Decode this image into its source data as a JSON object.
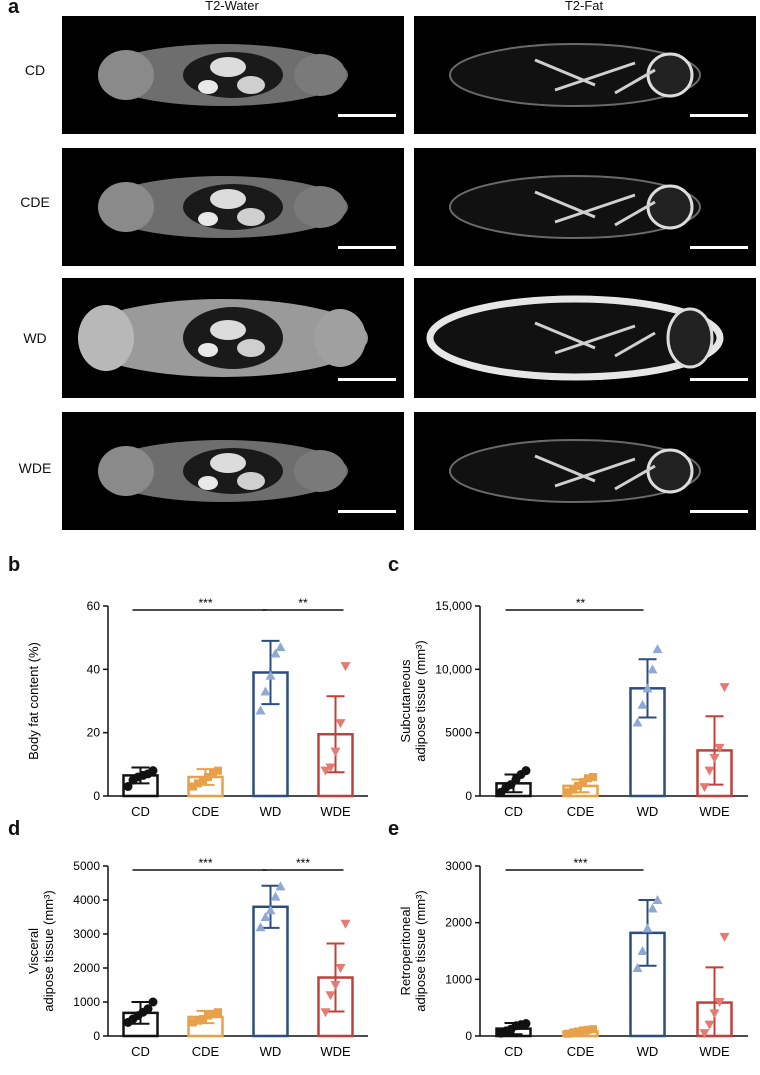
{
  "panel_a": {
    "letter": "a",
    "columns": [
      "T2-Water",
      "T2-Fat"
    ],
    "rows": [
      "CD",
      "CDE",
      "WD",
      "WDE"
    ]
  },
  "chart_data": [
    {
      "letter": "b",
      "type": "bar",
      "ylabel_lines": [
        "Body fat content (%)"
      ],
      "ylim": [
        0,
        60
      ],
      "yticks": [
        0,
        20,
        40,
        60
      ],
      "tick_labels": [
        "0",
        "20",
        "40",
        "60"
      ],
      "categories": [
        "CD",
        "CDE",
        "WD",
        "WDE"
      ],
      "colors": [
        "#111111",
        "#e8a04a",
        "#2b4d7e",
        "#c0403a"
      ],
      "point_colors": [
        "#111111",
        "#e8a04a",
        "#8fa9d3",
        "#e47a72"
      ],
      "markers": [
        "circle",
        "square",
        "triangle-up",
        "triangle-down"
      ],
      "values": [
        6.5,
        6.0,
        39,
        19.5
      ],
      "sd": [
        2.5,
        2.5,
        10,
        12
      ],
      "points": [
        [
          3,
          5,
          6,
          6.5,
          7,
          8
        ],
        [
          3,
          4,
          5,
          6,
          7,
          8
        ],
        [
          27,
          33,
          38,
          45,
          47
        ],
        [
          8,
          9,
          14,
          23,
          41
        ]
      ],
      "significance": [
        {
          "from": 0,
          "to": 2,
          "label": "***"
        },
        {
          "from": 2,
          "to": 3,
          "label": "**"
        }
      ]
    },
    {
      "letter": "c",
      "type": "bar",
      "ylabel_lines": [
        "Subcutaneous",
        "adipose tissue (mm³)"
      ],
      "ylim": [
        0,
        15000
      ],
      "yticks": [
        0,
        5000,
        10000,
        15000
      ],
      "tick_labels": [
        "0",
        "5000",
        "10,000",
        "15,000"
      ],
      "categories": [
        "CD",
        "CDE",
        "WD",
        "WDE"
      ],
      "colors": [
        "#111111",
        "#e8a04a",
        "#2b4d7e",
        "#c0403a"
      ],
      "point_colors": [
        "#111111",
        "#e8a04a",
        "#8fa9d3",
        "#e47a72"
      ],
      "markers": [
        "circle",
        "square",
        "triangle-up",
        "triangle-down"
      ],
      "values": [
        1000,
        800,
        8500,
        3600
      ],
      "sd": [
        700,
        500,
        2300,
        2700
      ],
      "points": [
        [
          300,
          700,
          900,
          1300,
          1700,
          2000
        ],
        [
          300,
          500,
          800,
          1100,
          1400,
          1500
        ],
        [
          5800,
          7200,
          8500,
          10000,
          11600
        ],
        [
          700,
          2000,
          3000,
          3800,
          8600
        ]
      ],
      "significance": [
        {
          "from": 0,
          "to": 2,
          "label": "**"
        }
      ]
    },
    {
      "letter": "d",
      "type": "bar",
      "ylabel_lines": [
        "Visceral",
        "adipose tissue (mm³)"
      ],
      "ylim": [
        0,
        5000
      ],
      "yticks": [
        0,
        1000,
        2000,
        3000,
        4000,
        5000
      ],
      "tick_labels": [
        "0",
        "1000",
        "2000",
        "3000",
        "4000",
        "5000"
      ],
      "categories": [
        "CD",
        "CDE",
        "WD",
        "WDE"
      ],
      "colors": [
        "#111111",
        "#e8a04a",
        "#2b4d7e",
        "#c0403a"
      ],
      "point_colors": [
        "#111111",
        "#e8a04a",
        "#8fa9d3",
        "#e47a72"
      ],
      "markers": [
        "circle",
        "square",
        "triangle-up",
        "triangle-down"
      ],
      "values": [
        680,
        560,
        3800,
        1720
      ],
      "sd": [
        320,
        180,
        620,
        1000
      ],
      "points": [
        [
          400,
          500,
          600,
          700,
          800,
          1000
        ],
        [
          400,
          450,
          500,
          600,
          650,
          700
        ],
        [
          3200,
          3500,
          3700,
          4100,
          4400
        ],
        [
          700,
          1200,
          1500,
          2000,
          3300
        ]
      ],
      "significance": [
        {
          "from": 0,
          "to": 2,
          "label": "***"
        },
        {
          "from": 2,
          "to": 3,
          "label": "***"
        }
      ]
    },
    {
      "letter": "e",
      "type": "bar",
      "ylabel_lines": [
        "Retroperitoneal",
        "adipose tissue (mm³)"
      ],
      "ylim": [
        0,
        3000
      ],
      "yticks": [
        0,
        1000,
        2000,
        3000
      ],
      "tick_labels": [
        "0",
        "1000",
        "2000",
        "3000"
      ],
      "categories": [
        "CD",
        "CDE",
        "WD",
        "WDE"
      ],
      "colors": [
        "#111111",
        "#e8a04a",
        "#2b4d7e",
        "#c0403a"
      ],
      "point_colors": [
        "#111111",
        "#e8a04a",
        "#8fa9d3",
        "#e47a72"
      ],
      "markers": [
        "circle",
        "square",
        "triangle-up",
        "triangle-down"
      ],
      "values": [
        130,
        80,
        1820,
        590
      ],
      "sd": [
        100,
        40,
        580,
        620
      ],
      "points": [
        [
          50,
          90,
          120,
          180,
          200,
          220
        ],
        [
          40,
          60,
          80,
          100,
          110,
          120
        ],
        [
          1200,
          1500,
          1900,
          2250,
          2400
        ],
        [
          50,
          200,
          400,
          600,
          1750
        ]
      ],
      "significance": [
        {
          "from": 0,
          "to": 2,
          "label": "***"
        }
      ]
    }
  ]
}
